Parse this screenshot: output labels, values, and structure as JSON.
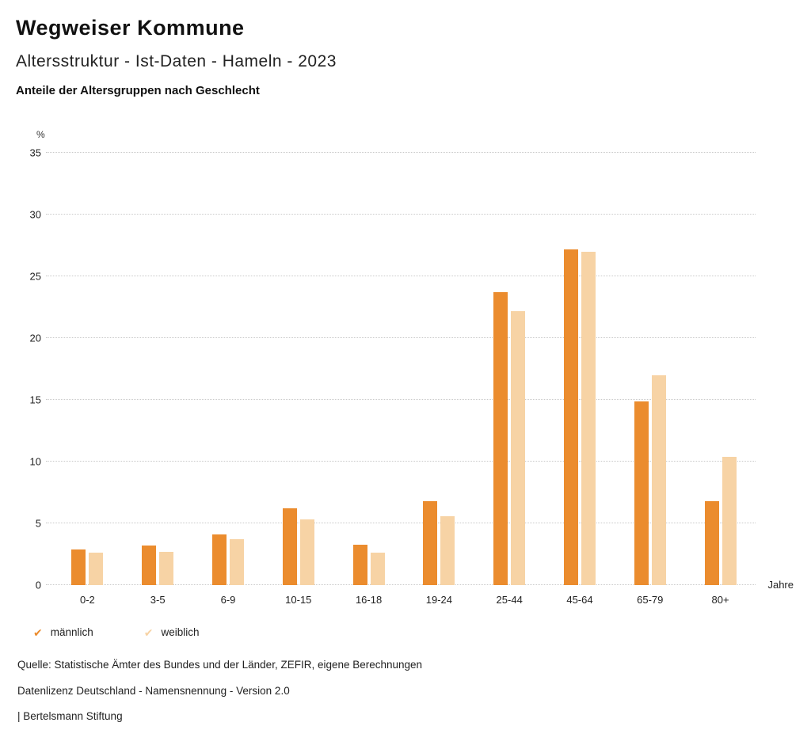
{
  "header": {
    "title": "Wegweiser Kommune",
    "subtitle": "Altersstruktur - Ist-Daten - Hameln - 2023",
    "caption": "Anteile der Altersgruppen nach Geschlecht"
  },
  "chart_data": {
    "type": "bar",
    "categories": [
      "0-2",
      "3-5",
      "6-9",
      "10-15",
      "16-18",
      "19-24",
      "25-44",
      "45-64",
      "65-79",
      "80+"
    ],
    "series": [
      {
        "name": "männlich",
        "color": "#EB8C2E",
        "values": [
          2.9,
          3.2,
          4.1,
          6.2,
          3.3,
          6.8,
          23.7,
          27.2,
          14.9,
          6.8
        ]
      },
      {
        "name": "weiblich",
        "color": "#F7D3A5",
        "values": [
          2.6,
          2.7,
          3.7,
          5.3,
          2.6,
          5.6,
          22.2,
          27.0,
          17.0,
          10.4
        ]
      }
    ],
    "ylabel": "%",
    "xlabel": "Jahre",
    "ylim": [
      0,
      35
    ],
    "yticks": [
      0,
      5,
      10,
      15,
      20,
      25,
      30,
      35
    ],
    "grid": true,
    "legend_position": "bottom"
  },
  "legend": {
    "check_icon": "✔",
    "items": [
      {
        "label": "männlich"
      },
      {
        "label": "weiblich"
      }
    ]
  },
  "footer": {
    "line1": "Quelle: Statistische Ämter des Bundes und der Länder, ZEFIR, eigene Berechnungen",
    "line2": "Datenlizenz Deutschland - Namensnennung - Version 2.0",
    "line3": "| Bertelsmann Stiftung"
  }
}
